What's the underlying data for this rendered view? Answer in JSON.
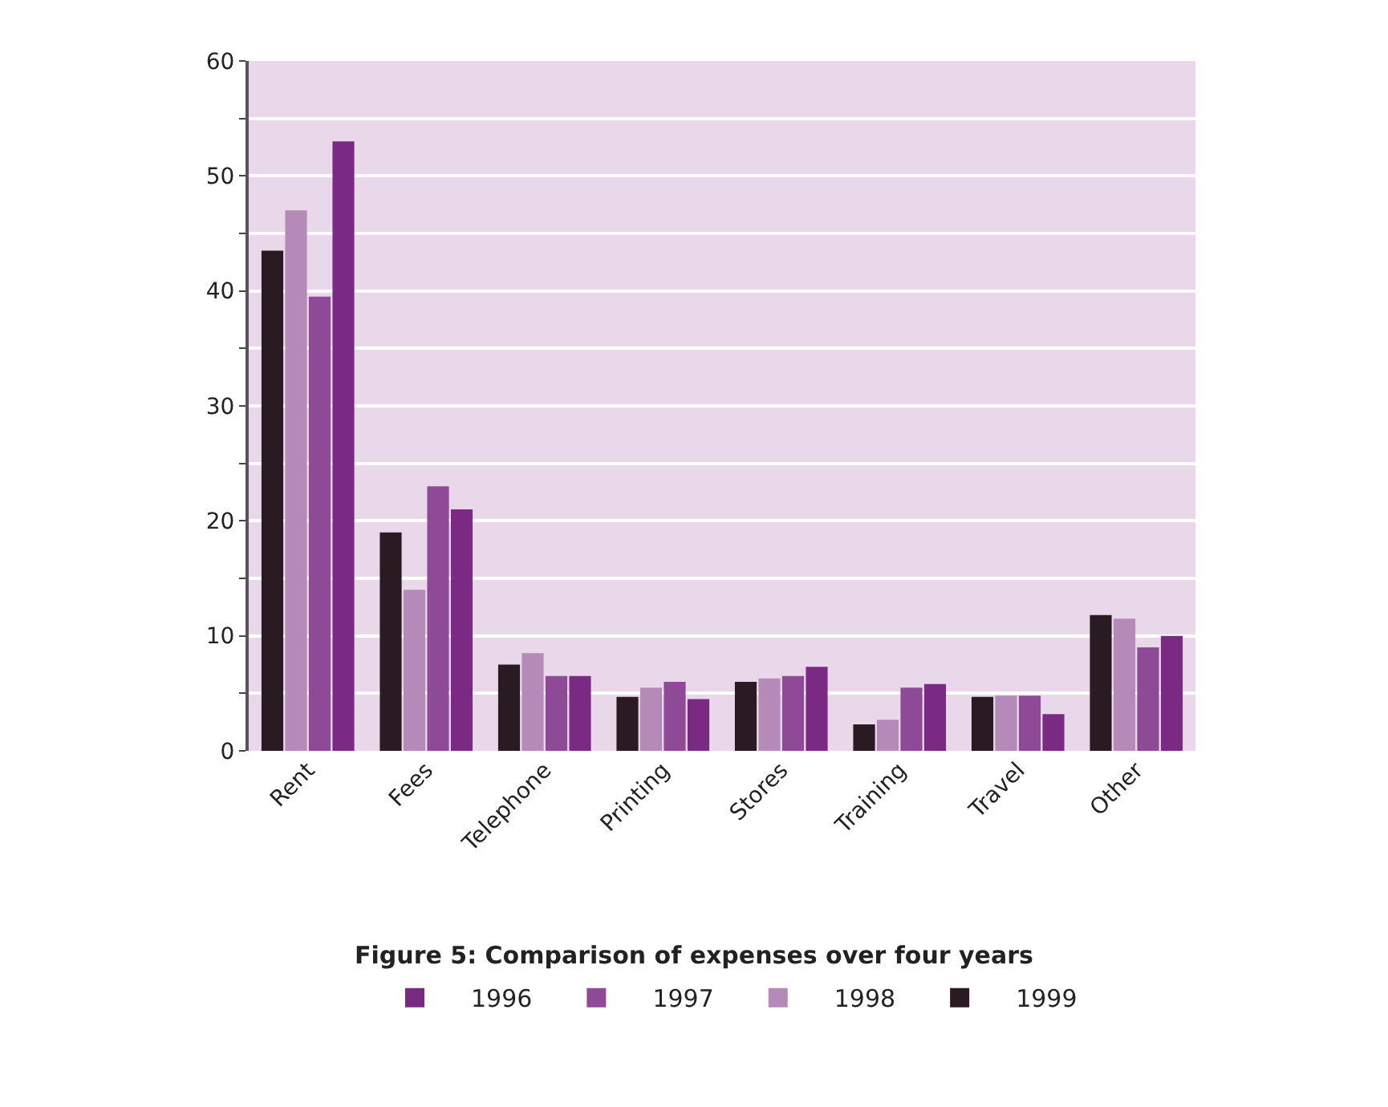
{
  "chart_data": {
    "type": "bar",
    "title": "Figure 5: Comparison of expenses over four years",
    "categories": [
      "Rent",
      "Fees",
      "Telephone",
      "Printing",
      "Stores",
      "Training",
      "Travel",
      "Other"
    ],
    "series": [
      {
        "name": "1999",
        "color": "#2a1a22",
        "values": [
          43.5,
          19,
          7.5,
          4.7,
          6,
          2.3,
          4.7,
          11.8
        ]
      },
      {
        "name": "1998",
        "color": "#b58ab9",
        "values": [
          47,
          14,
          8.5,
          5.5,
          6.3,
          2.7,
          4.8,
          11.5
        ]
      },
      {
        "name": "1997",
        "color": "#8e4a96",
        "values": [
          39.5,
          23,
          6.5,
          6,
          6.5,
          5.5,
          4.8,
          9
        ]
      },
      {
        "name": "1996",
        "color": "#7b2a84",
        "values": [
          53,
          21,
          6.5,
          4.5,
          7.3,
          5.8,
          3.2,
          10
        ]
      }
    ],
    "ylim": [
      0,
      60
    ],
    "yticks": [
      0,
      {
        "value": 5,
        "label": null
      },
      10,
      {
        "value": 15,
        "label": null
      },
      20,
      {
        "value": 25,
        "label": null
      },
      30,
      {
        "value": 35,
        "label": null
      },
      40,
      {
        "value": 45,
        "label": null
      },
      50,
      {
        "value": 55,
        "label": null
      },
      60
    ],
    "grid": "y",
    "legend": "bottom"
  }
}
